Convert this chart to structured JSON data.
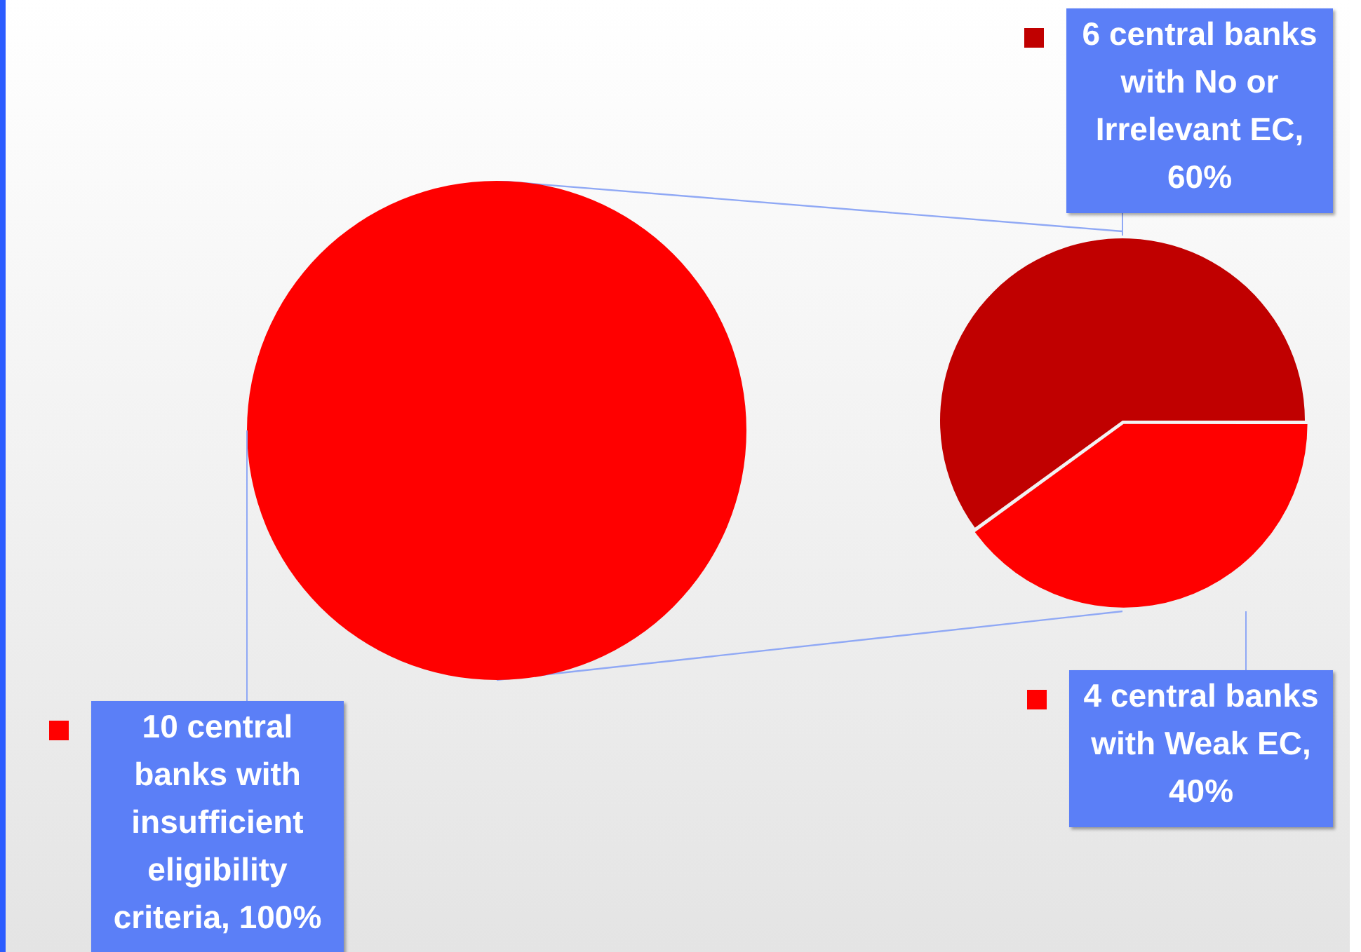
{
  "chart_data": [
    {
      "type": "pie",
      "categories": [
        "10 central banks with insufficient eligibility criteria, 100%"
      ],
      "values": [
        100
      ],
      "colors": [
        "#ff0000"
      ],
      "legend": "bottom left"
    },
    {
      "type": "pie",
      "categories": [
        "6 central banks with No or Irrelevant EC, 60%",
        "4 central banks with Weak EC, 40%"
      ],
      "values": [
        60,
        40
      ],
      "colors": [
        "#c00000",
        "#ff0000"
      ],
      "legend": "right"
    }
  ]
}
